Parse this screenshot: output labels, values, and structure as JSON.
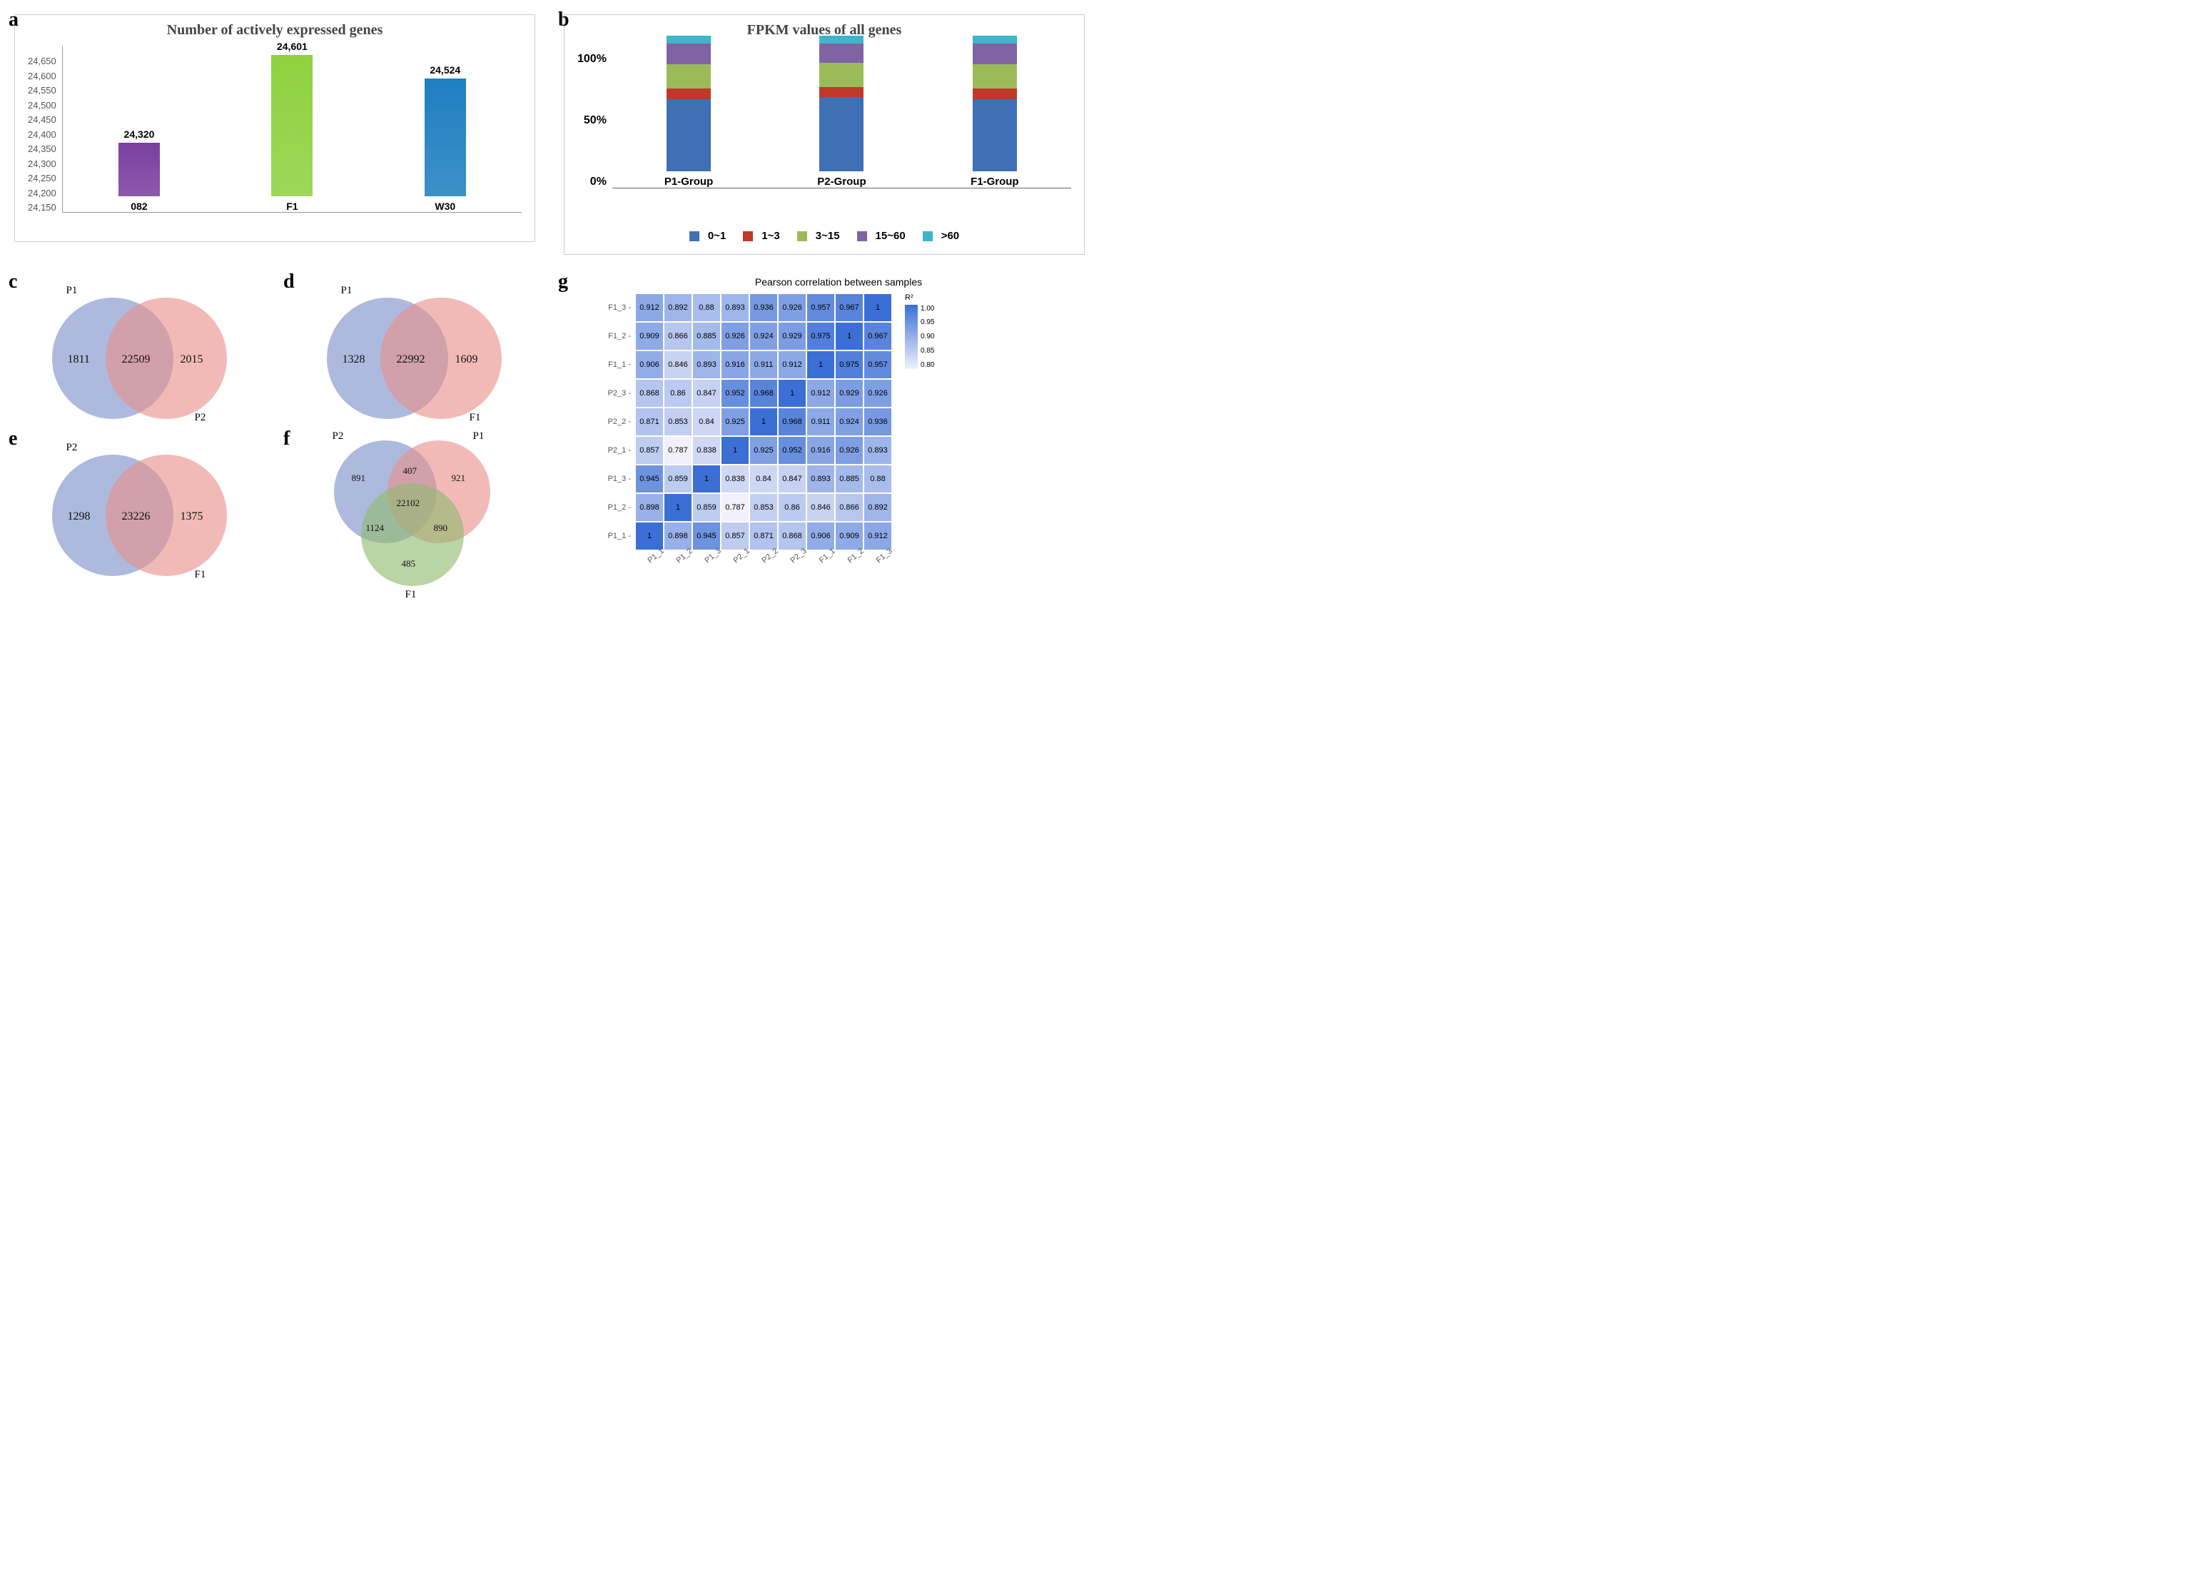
{
  "panel_a": {
    "label": "a",
    "type": "bar",
    "title": "Number of actively expressed genes",
    "categories": [
      "082",
      "F1",
      "W30"
    ],
    "values": [
      24320,
      24601,
      24524
    ],
    "value_labels": [
      "24,320",
      "24,601",
      "24,524"
    ],
    "bar_colors": [
      "#7b3fa0",
      "#8fd13f",
      "#1f7fc1"
    ],
    "ylim": [
      24150,
      24650
    ],
    "yticks": [
      "24,650",
      "24,600",
      "24,550",
      "24,500",
      "24,450",
      "24,400",
      "24,350",
      "24,300",
      "24,250",
      "24,200",
      "24,150"
    ],
    "title_fontsize": 20,
    "label_fontsize": 13,
    "background_color": "#ffffff",
    "border_color": "#cccccc"
  },
  "panel_b": {
    "label": "b",
    "type": "stacked_bar_percent",
    "title": "FPKM values of all genes",
    "categories": [
      "P1-Group",
      "P2-Group",
      "F1-Group"
    ],
    "yticks": [
      "100%",
      "50%",
      "0%"
    ],
    "series": [
      {
        "name": "0~1",
        "color": "#3f6fb5"
      },
      {
        "name": "1~3",
        "color": "#c0392b"
      },
      {
        "name": "3~15",
        "color": "#9bbb59"
      },
      {
        "name": "15~60",
        "color": "#7f63a3"
      },
      {
        "name": ">60",
        "color": "#3fb5c9"
      }
    ],
    "values_percent": [
      [
        53,
        8,
        18,
        15,
        6
      ],
      [
        55,
        7,
        18,
        14,
        6
      ],
      [
        53,
        8,
        18,
        15,
        6
      ]
    ],
    "title_fontsize": 20,
    "background_color": "#ffffff"
  },
  "panel_c": {
    "label": "c",
    "type": "venn2",
    "left_label": "P1",
    "right_label": "P2",
    "left_only": "1811",
    "intersection": "22509",
    "right_only": "2015",
    "left_color": "#7a8fc9",
    "right_color": "#e88f8a"
  },
  "panel_d": {
    "label": "d",
    "type": "venn2",
    "left_label": "P1",
    "right_label": "F1",
    "left_only": "1328",
    "intersection": "22992",
    "right_only": "1609",
    "left_color": "#7a8fc9",
    "right_color": "#e88f8a"
  },
  "panel_e": {
    "label": "e",
    "type": "venn2",
    "left_label": "P2",
    "right_label": "F1",
    "left_only": "1298",
    "intersection": "23226",
    "right_only": "1375",
    "left_color": "#7a8fc9",
    "right_color": "#e88f8a"
  },
  "panel_f": {
    "label": "f",
    "type": "venn3",
    "labels": {
      "top_left": "P2",
      "top_right": "P1",
      "bottom": "F1"
    },
    "regions": {
      "p2_only": "891",
      "p1_only": "921",
      "f1_only": "485",
      "p1_p2": "407",
      "p2_f1": "1124",
      "p1_f1": "890",
      "all": "22102"
    },
    "colors": {
      "p1": "#e88f8a",
      "p2": "#7a8fc9",
      "f1": "#8fba6f"
    }
  },
  "panel_g": {
    "label": "g",
    "type": "heatmap",
    "title": "Pearson correlation between samples",
    "row_labels": [
      "F1_3",
      "F1_2",
      "F1_1",
      "P2_3",
      "P2_2",
      "P2_1",
      "P1_3",
      "P1_2",
      "P1_1"
    ],
    "col_labels": [
      "P1_1",
      "P1_2",
      "P1_3",
      "P2_1",
      "P2_2",
      "P2_3",
      "F1_1",
      "F1_2",
      "F1_3"
    ],
    "matrix": [
      [
        0.912,
        0.892,
        0.88,
        0.893,
        0.936,
        0.926,
        0.957,
        0.967,
        1
      ],
      [
        0.909,
        0.866,
        0.885,
        0.926,
        0.924,
        0.929,
        0.975,
        1,
        0.967
      ],
      [
        0.906,
        0.846,
        0.893,
        0.916,
        0.911,
        0.912,
        1,
        0.975,
        0.957
      ],
      [
        0.868,
        0.86,
        0.847,
        0.952,
        0.968,
        1,
        0.912,
        0.929,
        0.926
      ],
      [
        0.871,
        0.853,
        0.84,
        0.925,
        1,
        0.968,
        0.911,
        0.924,
        0.936
      ],
      [
        0.857,
        0.787,
        0.838,
        1,
        0.925,
        0.952,
        0.916,
        0.926,
        0.893
      ],
      [
        0.945,
        0.859,
        1,
        0.838,
        0.84,
        0.847,
        0.893,
        0.885,
        0.88
      ],
      [
        0.898,
        1,
        0.859,
        0.787,
        0.853,
        0.86,
        0.846,
        0.866,
        0.892
      ],
      [
        1,
        0.898,
        0.945,
        0.857,
        0.871,
        0.868,
        0.906,
        0.909,
        0.912
      ]
    ],
    "color_scale": {
      "min": 0.8,
      "max": 1.0,
      "low_color": "#f2f1fb",
      "high_color": "#3b6fd6"
    },
    "legend_label": "R²",
    "legend_ticks": [
      "1.00",
      "0.95",
      "0.90",
      "0.85",
      "0.80"
    ],
    "cell_size": 40,
    "font_size": 11
  }
}
